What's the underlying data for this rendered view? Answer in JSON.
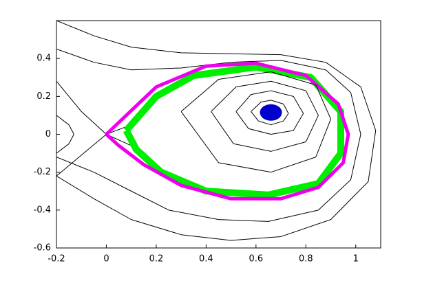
{
  "chart_data": {
    "type": "line",
    "xlim": [
      -0.2,
      1.1
    ],
    "ylim": [
      -0.6,
      0.6
    ],
    "xticks": [
      -0.2,
      0,
      0.2,
      0.4,
      0.6,
      0.8,
      1
    ],
    "yticks": [
      -0.6,
      -0.4,
      -0.2,
      0,
      0.2,
      0.4
    ],
    "series": [
      {
        "color": "#000000",
        "x": [
          -0.2,
          -0.05,
          0.1,
          0.3,
          0.5,
          0.7,
          0.88,
          1.02,
          1.08,
          1.05,
          0.9,
          0.7,
          0.5,
          0.3,
          0.1,
          -0.05,
          -0.2
        ],
        "values": [
          0.6,
          0.52,
          0.46,
          0.43,
          0.425,
          0.42,
          0.38,
          0.25,
          0.02,
          -0.25,
          -0.45,
          -0.54,
          -0.56,
          -0.53,
          -0.45,
          -0.34,
          -0.22
        ]
      },
      {
        "color": "#000000",
        "x": [
          -0.2,
          -0.05,
          0.1,
          0.3,
          0.5,
          0.7,
          0.88,
          0.98,
          1.02,
          0.98,
          0.85,
          0.65,
          0.45,
          0.25,
          0.1,
          -0.05,
          -0.2
        ],
        "values": [
          0.45,
          0.38,
          0.34,
          0.35,
          0.38,
          0.39,
          0.34,
          0.22,
          0.0,
          -0.24,
          -0.4,
          -0.46,
          -0.45,
          -0.4,
          -0.3,
          -0.2,
          -0.12
        ]
      },
      {
        "color": "#000000",
        "x": [
          -0.2,
          -0.1,
          0,
          0.1
        ],
        "values": [
          -0.22,
          -0.11,
          0,
          0.05
        ]
      },
      {
        "color": "#000000",
        "x": [
          -0.2,
          -0.1,
          0,
          0.1
        ],
        "values": [
          0.28,
          0.12,
          0,
          -0.06
        ]
      },
      {
        "color": "#000000",
        "x": [
          -0.2,
          -0.15,
          -0.13,
          -0.15,
          -0.2
        ],
        "values": [
          0.1,
          0.05,
          0,
          -0.05,
          -0.1
        ]
      },
      {
        "color": "#00ee00",
        "width": 10,
        "x": [
          0.08,
          0.2,
          0.35,
          0.6,
          0.82,
          0.94,
          0.94,
          0.85,
          0.65,
          0.4,
          0.22,
          0.12,
          0.08
        ],
        "values": [
          0.02,
          0.2,
          0.31,
          0.355,
          0.3,
          0.12,
          -0.1,
          -0.26,
          -0.32,
          -0.3,
          -0.2,
          -0.08,
          0.02
        ]
      },
      {
        "color": "#ee00ee",
        "width": 5,
        "x": [
          0,
          0.2,
          0.4,
          0.6,
          0.8,
          0.93,
          0.97,
          0.95,
          0.85,
          0.7,
          0.5,
          0.3,
          0.15,
          0.05,
          0
        ],
        "values": [
          0,
          0.25,
          0.36,
          0.375,
          0.31,
          0.16,
          0,
          -0.15,
          -0.28,
          -0.34,
          -0.34,
          -0.27,
          -0.16,
          -0.06,
          0
        ]
      },
      {
        "color": "#000000",
        "x": [
          0.3,
          0.45,
          0.66,
          0.84,
          0.9,
          0.84,
          0.66,
          0.45,
          0.3
        ],
        "values": [
          0.12,
          0.29,
          0.33,
          0.26,
          0.08,
          -0.12,
          -0.2,
          -0.15,
          0.12
        ]
      },
      {
        "color": "#000000",
        "x": [
          0.42,
          0.52,
          0.66,
          0.8,
          0.85,
          0.8,
          0.66,
          0.51,
          0.42
        ],
        "values": [
          0.12,
          0.25,
          0.28,
          0.23,
          0.1,
          -0.04,
          -0.09,
          -0.05,
          0.12
        ]
      },
      {
        "color": "#000000",
        "x": [
          0.52,
          0.58,
          0.66,
          0.75,
          0.79,
          0.75,
          0.66,
          0.57,
          0.52
        ],
        "values": [
          0.12,
          0.21,
          0.23,
          0.2,
          0.11,
          0.02,
          0,
          0.03,
          0.12
        ]
      },
      {
        "color": "#000000",
        "x": [
          0.58,
          0.62,
          0.66,
          0.71,
          0.73,
          0.71,
          0.66,
          0.61,
          0.58
        ],
        "values": [
          0.12,
          0.17,
          0.18,
          0.16,
          0.11,
          0.07,
          0.05,
          0.07,
          0.12
        ]
      },
      {
        "color": "#0000cc",
        "marker": "ellipse",
        "x": [
          0.66
        ],
        "values": [
          0.115
        ]
      }
    ]
  }
}
